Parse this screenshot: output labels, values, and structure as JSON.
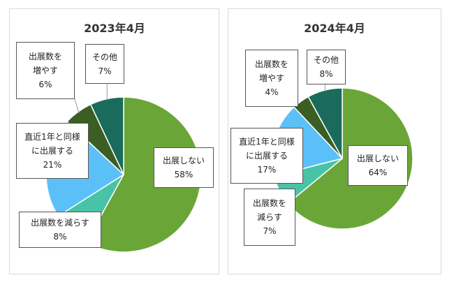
{
  "colors": {
    "exhibit_none": "#6aa637",
    "exhibit_reduce": "#49c3a8",
    "exhibit_same": "#5bc0f8",
    "exhibit_increase": "#3a5e23",
    "other": "#1b6b5c"
  },
  "chart_data": [
    {
      "type": "pie",
      "title": "2023年4月",
      "slices": [
        {
          "key": "exhibit_none",
          "label_lines": [
            "出展しない"
          ],
          "value": 58,
          "value_label": "58%"
        },
        {
          "key": "exhibit_reduce",
          "label_lines": [
            "出展数を減らす"
          ],
          "value": 8,
          "value_label": "8%"
        },
        {
          "key": "exhibit_same",
          "label_lines": [
            "直近1年と同様",
            "に出展する"
          ],
          "value": 21,
          "value_label": "21%"
        },
        {
          "key": "exhibit_increase",
          "label_lines": [
            "出展数を",
            "増やす"
          ],
          "value": 6,
          "value_label": "6%"
        },
        {
          "key": "other",
          "label_lines": [
            "その他"
          ],
          "value": 7,
          "value_label": "7%"
        }
      ]
    },
    {
      "type": "pie",
      "title": "2024年4月",
      "slices": [
        {
          "key": "exhibit_none",
          "label_lines": [
            "出展しない"
          ],
          "value": 64,
          "value_label": "64%"
        },
        {
          "key": "exhibit_reduce",
          "label_lines": [
            "出展数を",
            "減らす"
          ],
          "value": 7,
          "value_label": "7%"
        },
        {
          "key": "exhibit_same",
          "label_lines": [
            "直近1年と同様",
            "に出展する"
          ],
          "value": 17,
          "value_label": "17%"
        },
        {
          "key": "exhibit_increase",
          "label_lines": [
            "出展数を",
            "増やす"
          ],
          "value": 4,
          "value_label": "4%"
        },
        {
          "key": "other",
          "label_lines": [
            "その他"
          ],
          "value": 8,
          "value_label": "8%"
        }
      ]
    }
  ]
}
